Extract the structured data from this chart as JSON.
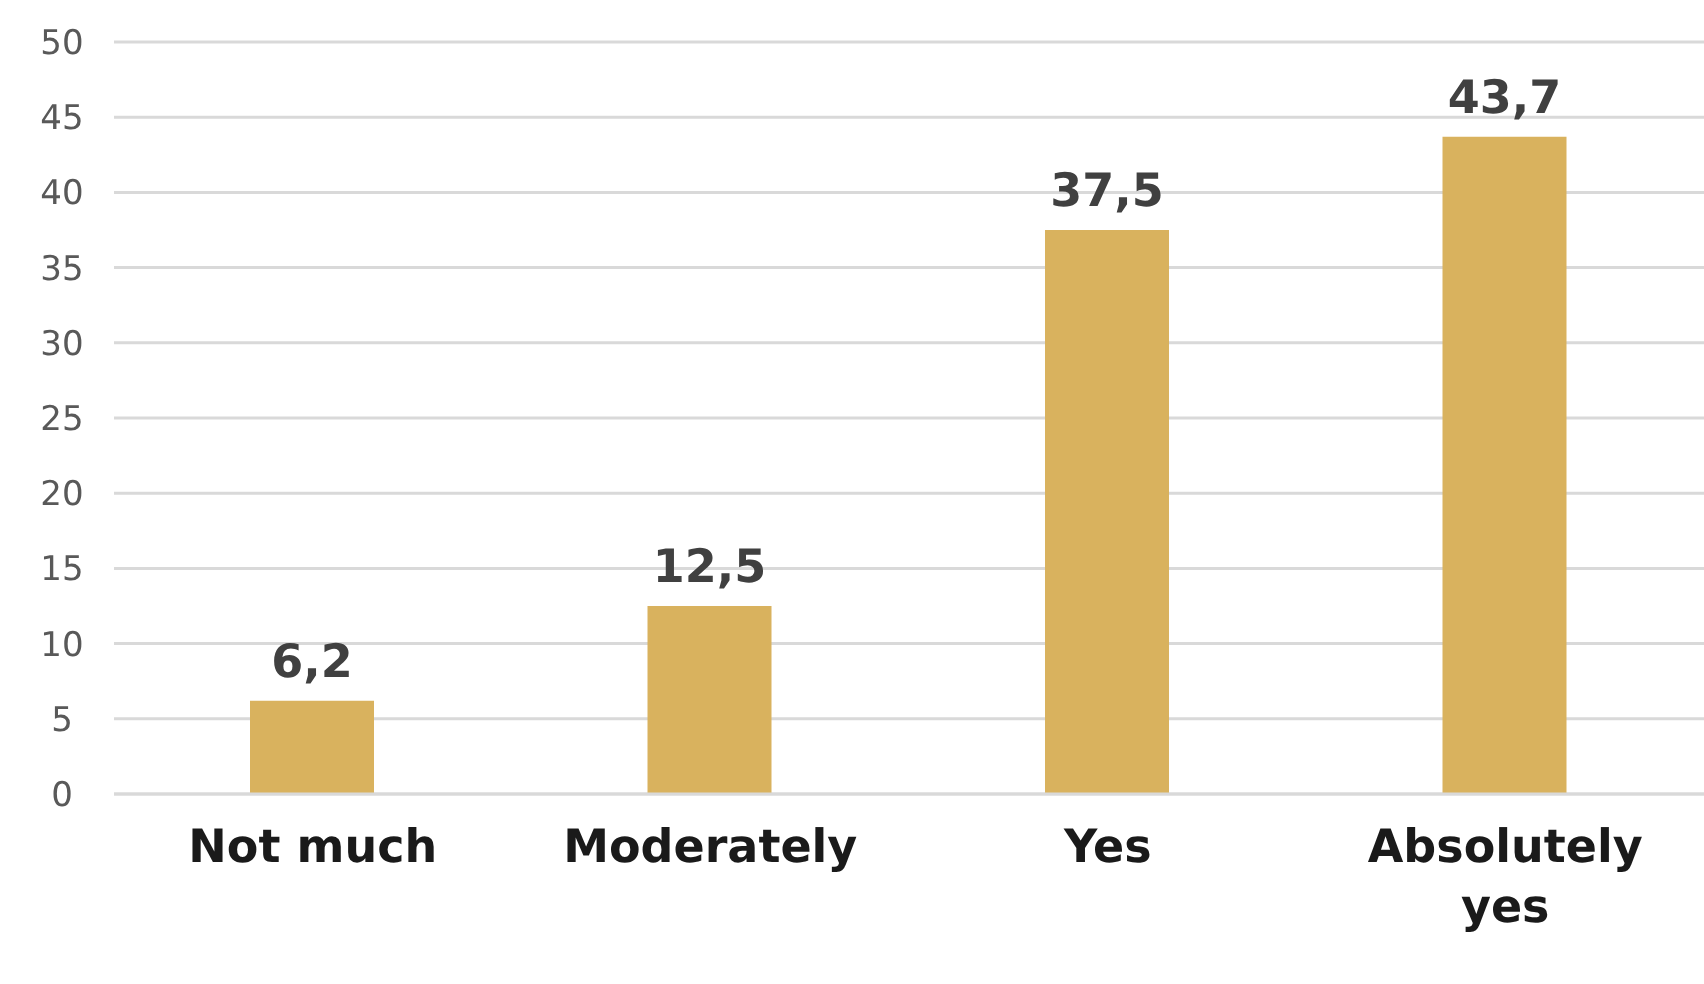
{
  "chart_data": {
    "type": "bar",
    "categories": [
      "Not much",
      "Moderately",
      "Yes",
      "Absolutely yes"
    ],
    "values": [
      6.2,
      12.5,
      37.5,
      43.7
    ],
    "value_labels": [
      "6,2",
      "12,5",
      "37,5",
      "43,7"
    ],
    "color": "#d9b25e",
    "ylim": [
      0,
      50
    ],
    "yticks": [
      0,
      5,
      10,
      15,
      20,
      25,
      30,
      35,
      40,
      45,
      50
    ],
    "grid": "y"
  }
}
